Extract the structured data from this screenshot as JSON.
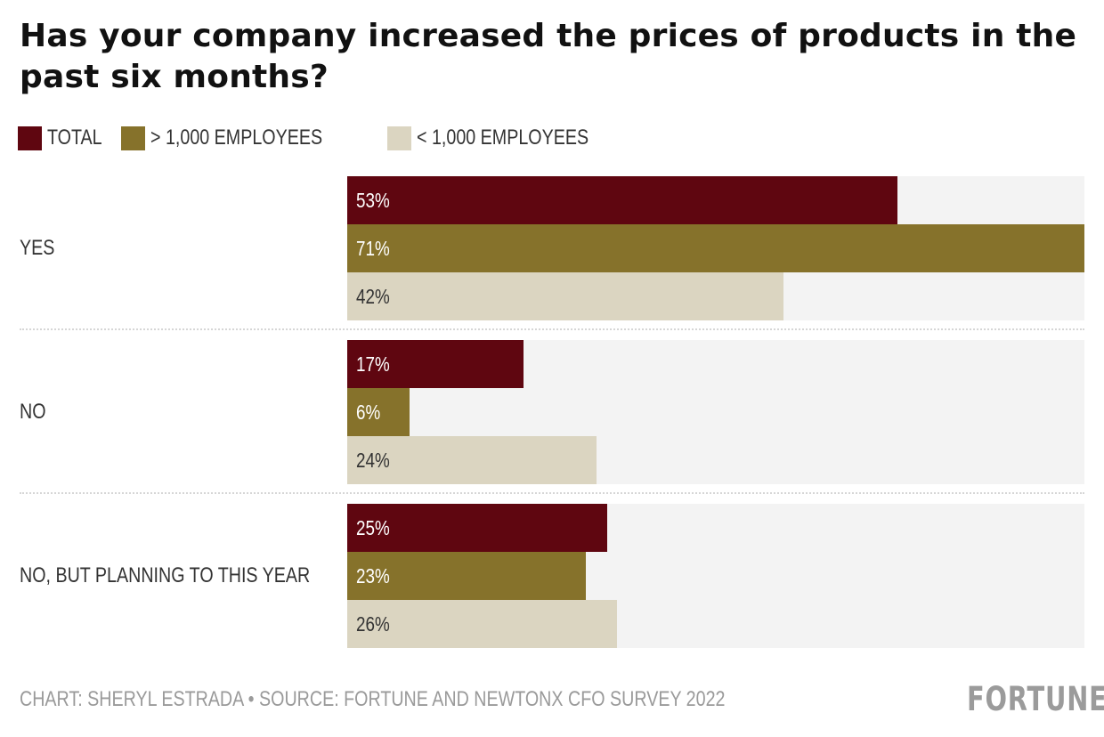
{
  "chart_data": {
    "type": "bar",
    "orientation": "horizontal",
    "title": "Has your company increased the prices of products in the past six months?",
    "categories": [
      "YES",
      "NO",
      "NO, BUT PLANNING TO THIS YEAR"
    ],
    "series": [
      {
        "name": "TOTAL",
        "color": "#5f0610",
        "label_color": "#ffffff",
        "values": [
          53,
          17,
          25
        ]
      },
      {
        "name": "> 1,000 EMPLOYEES",
        "color": "#86722b",
        "label_color": "#ffffff",
        "values": [
          71,
          6,
          23
        ]
      },
      {
        "name": "< 1,000 EMPLOYEES",
        "color": "#dbd5c1",
        "label_color": "#333333",
        "values": [
          42,
          24,
          26
        ]
      }
    ],
    "value_suffix": "%",
    "xlim": [
      0,
      71
    ],
    "xlabel": "",
    "ylabel": "",
    "grid": false,
    "legend": "top-left",
    "track_color": "#f3f3f3"
  },
  "title": "Has your company increased the prices of products in the past six months?",
  "footer": {
    "credit": "CHART: SHERYL ESTRADA • SOURCE: FORTUNE AND NEWTONX CFO SURVEY 2022",
    "logo": "FORTUNE"
  }
}
